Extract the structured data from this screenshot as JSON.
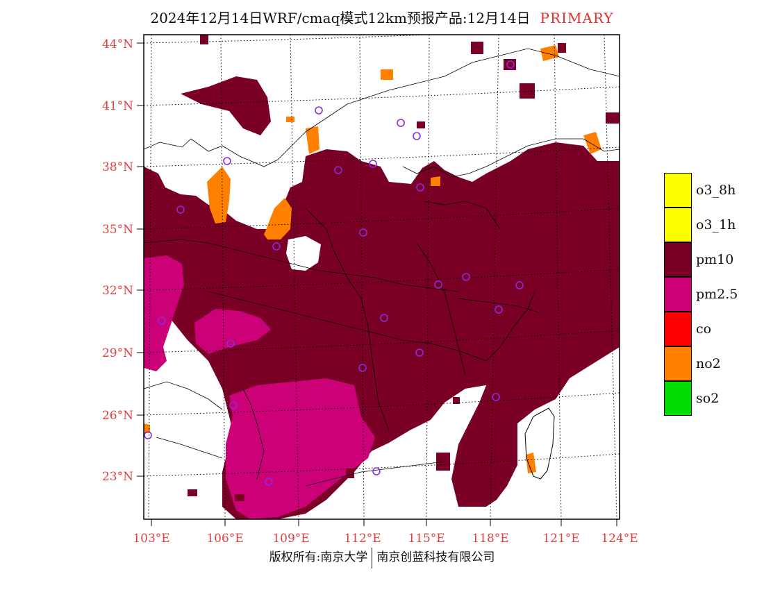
{
  "title": {
    "main": "2024年12月14日WRF/cmaq模式12km预报产品:12月14日",
    "tag": "PRIMARY"
  },
  "lat_labels": [
    "44°N",
    "41°N",
    "38°N",
    "35°N",
    "32°N",
    "29°N",
    "26°N",
    "23°N"
  ],
  "lon_labels": [
    "103°E",
    "106°E",
    "109°E",
    "112°E",
    "115°E",
    "118°E",
    "121°E",
    "124°E"
  ],
  "legend": {
    "items": [
      {
        "label": "o3_8h",
        "color": "#ffff00"
      },
      {
        "label": "o3_1h",
        "color": "#ffff00"
      },
      {
        "label": "pm10",
        "color": "#7a0026"
      },
      {
        "label": "pm2.5",
        "color": "#cc0077"
      },
      {
        "label": "co",
        "color": "#ff0000"
      },
      {
        "label": "no2",
        "color": "#ff8000"
      },
      {
        "label": "so2",
        "color": "#00dd00"
      }
    ]
  },
  "footer": {
    "left": "版权所有:南京大学",
    "right": "南京创蓝科技有限公司"
  },
  "station_marker_color": "#8a2be2"
}
